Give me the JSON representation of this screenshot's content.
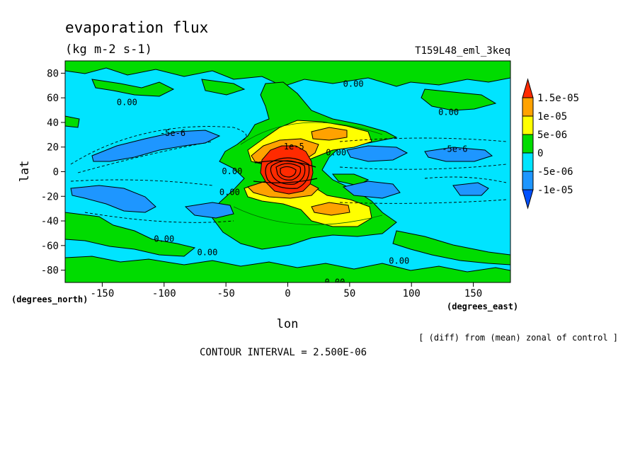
{
  "header": {
    "title": "evaporation flux",
    "units": "(kg m-2 s-1)",
    "run_id": "T159L48_eml_3keq"
  },
  "footer": {
    "diff_note": "[ (diff) from (mean) zonal of control ]",
    "contour_interval": "CONTOUR INTERVAL = 2.500E-06"
  },
  "chart_data": {
    "type": "heatmap",
    "title": "evaporation flux",
    "subtitle": "(kg m-2 s-1)",
    "xlabel": "lon",
    "ylabel": "lat",
    "x_units": "(degrees_east)",
    "y_units": "(degrees_north)",
    "xlim": [
      -180,
      180
    ],
    "ylim": [
      -90,
      90
    ],
    "x_ticks": [
      -150,
      -100,
      -50,
      0,
      50,
      100,
      150
    ],
    "y_ticks": [
      -80,
      -60,
      -40,
      -20,
      0,
      20,
      40,
      60,
      80
    ],
    "x_tick_labels": [
      "-150",
      "-100",
      "-50",
      "0",
      "50",
      "100",
      "150"
    ],
    "y_tick_labels": [
      "-80",
      "-60",
      "-40",
      "-20",
      "0",
      "20",
      "40",
      "60",
      "80"
    ],
    "colorbar": {
      "levels": [
        "1.5e-05",
        "1e-05",
        "5e-06",
        "0",
        "-5e-06",
        "-1e-05"
      ],
      "colors": [
        "#ff2a00",
        "#ffa200",
        "#ffff00",
        "#00dc00",
        "#00e4ff",
        "#1e96ff",
        "#0050ff"
      ],
      "extend": "both"
    },
    "contour_interval": 2.5e-06,
    "contour_labels": [
      {
        "text": "0.00",
        "lon": 53,
        "lat": 72
      },
      {
        "text": "0.00",
        "lon": -130,
        "lat": 57
      },
      {
        "text": "0.00",
        "lon": 130,
        "lat": 49
      },
      {
        "text": "-5e-6",
        "lon": -93,
        "lat": 32
      },
      {
        "text": "-5e-6",
        "lon": 135,
        "lat": 19
      },
      {
        "text": "1e-5",
        "lon": 5,
        "lat": 21
      },
      {
        "text": "0.00",
        "lon": 39,
        "lat": 16
      },
      {
        "text": "0.00",
        "lon": -45,
        "lat": 1
      },
      {
        "text": "0.00",
        "lon": -47,
        "lat": -16
      },
      {
        "text": "0.00",
        "lon": -100,
        "lat": -54
      },
      {
        "text": "0.00",
        "lon": -65,
        "lat": -65
      },
      {
        "text": "0.00",
        "lon": 90,
        "lat": -72
      },
      {
        "text": "0.00",
        "lon": 38,
        "lat": -89
      }
    ],
    "fields": {
      "positive_maxima": [
        {
          "lon": 2,
          "lat": 0,
          "value": 1.6e-05
        },
        {
          "lon": 45,
          "lat": 30,
          "value": 6e-06
        },
        {
          "lon": 45,
          "lat": -28,
          "value": 6e-06
        }
      ],
      "negative_minima": [
        {
          "lon": -95,
          "lat": 27,
          "value": -6e-06
        },
        {
          "lon": -135,
          "lat": -20,
          "value": -6e-06
        },
        {
          "lon": -60,
          "lat": -30,
          "value": -6e-06
        },
        {
          "lon": 65,
          "lat": 12,
          "value": -6e-06
        },
        {
          "lon": 125,
          "lat": 12,
          "value": -6e-06
        },
        {
          "lon": 70,
          "lat": -15,
          "value": -6e-06
        },
        {
          "lon": 135,
          "lat": -15,
          "value": -6e-06
        }
      ]
    },
    "grid": false,
    "legend": "right"
  }
}
